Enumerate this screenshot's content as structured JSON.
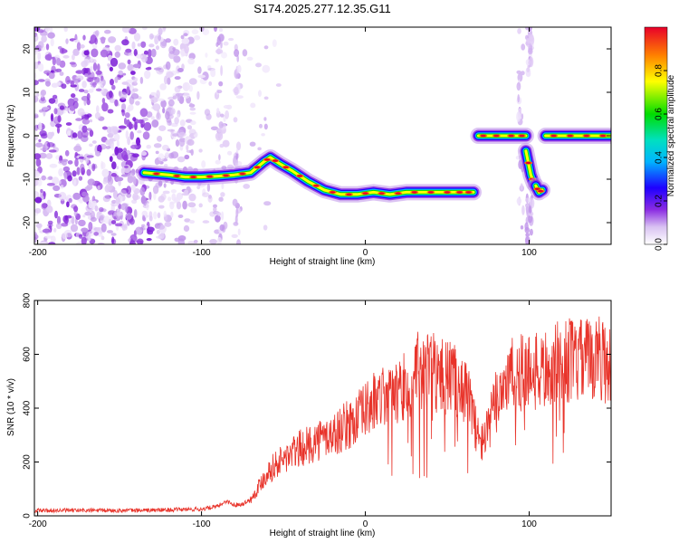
{
  "title": "S174.2025.277.12.35.G11",
  "colors": {
    "snr_line": "#e8332a",
    "colormap": [
      "#ffffff",
      "#d9c2f2",
      "#8a2be2",
      "#1e00ff",
      "#00b4ff",
      "#00e0c0",
      "#00dd00",
      "#ffff00",
      "#ff8000",
      "#e8002a"
    ]
  },
  "chart_data": [
    {
      "type": "heatmap",
      "title": "S174.2025.277.12.35.G11",
      "xlabel": "Height of straight line (km)",
      "ylabel": "Frequency (Hz)",
      "xlim": [
        -202,
        150
      ],
      "ylim": [
        -25,
        25
      ],
      "xticks": [
        -200,
        -100,
        0,
        100
      ],
      "yticks": [
        -20,
        -10,
        0,
        10,
        20
      ],
      "colorbar": {
        "label": "Normalized spectral amplitude",
        "range": [
          0,
          1
        ],
        "ticks": [
          "0.0",
          "0.2",
          "0.4",
          "0.6",
          "0.8"
        ]
      },
      "ridges": [
        {
          "x": [
            -135,
            -120,
            -110,
            -100,
            -90,
            -80,
            -70,
            -62,
            -58,
            -52,
            -45,
            -35,
            -25,
            -15,
            -5,
            5,
            15,
            25,
            35,
            45,
            55,
            60,
            66
          ],
          "y": [
            -8.5,
            -9,
            -9.5,
            -9.5,
            -9.3,
            -9,
            -8.5,
            -6,
            -5,
            -6.5,
            -8,
            -10.5,
            -12.5,
            -13.5,
            -13.5,
            -13,
            -13.5,
            -13,
            -13,
            -13,
            -13,
            -13,
            -13
          ]
        },
        {
          "x": [
            69,
            75,
            85,
            93,
            98
          ],
          "y": [
            0,
            0,
            0,
            0,
            0
          ]
        },
        {
          "x": [
            98,
            101,
            103
          ],
          "y": [
            -3.5,
            -9,
            -11
          ]
        },
        {
          "x": [
            104,
            106,
            108
          ],
          "y": [
            -11.5,
            -13,
            -12.5
          ]
        },
        {
          "x": [
            110,
            120,
            130,
            140,
            150
          ],
          "y": [
            0,
            0,
            0,
            0,
            0
          ]
        }
      ]
    },
    {
      "type": "line",
      "xlabel": "Height of straight line (km)",
      "ylabel": "SNR (10 * v/v)",
      "xlim": [
        -202,
        150
      ],
      "ylim": [
        0,
        800
      ],
      "xticks": [
        -200,
        -100,
        0,
        100
      ],
      "yticks": [
        0,
        200,
        400,
        600,
        800
      ],
      "series": [
        {
          "name": "SNR",
          "x": [
            -202,
            -180,
            -160,
            -140,
            -120,
            -100,
            -90,
            -85,
            -80,
            -75,
            -70,
            -65,
            -60,
            -55,
            -50,
            -45,
            -40,
            -35,
            -30,
            -25,
            -20,
            -15,
            -10,
            -5,
            0,
            5,
            10,
            15,
            20,
            25,
            30,
            35,
            40,
            45,
            50,
            55,
            60,
            65,
            70,
            75,
            80,
            85,
            90,
            95,
            100,
            105,
            110,
            115,
            120,
            125,
            130,
            135,
            140,
            145,
            150
          ],
          "y": [
            20,
            20,
            20,
            20,
            22,
            25,
            35,
            55,
            40,
            45,
            60,
            110,
            160,
            190,
            210,
            230,
            250,
            260,
            280,
            290,
            300,
            320,
            340,
            360,
            390,
            420,
            430,
            440,
            460,
            480,
            510,
            540,
            540,
            520,
            520,
            500,
            480,
            400,
            260,
            320,
            440,
            500,
            520,
            530,
            540,
            530,
            540,
            560,
            570,
            580,
            570,
            580,
            590,
            580,
            560
          ]
        }
      ]
    }
  ]
}
